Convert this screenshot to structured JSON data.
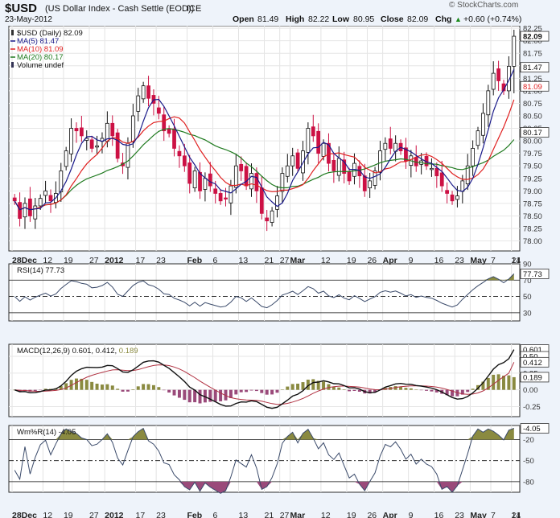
{
  "header": {
    "symbol": "$USD",
    "description": "(US Dollar Index - Cash Settle (EOD))",
    "exchange": "ICE",
    "date": "23-May-2012",
    "brand": "© StockCharts.com",
    "open_label": "Open",
    "open": "81.49",
    "high_label": "High",
    "high": "82.22",
    "low_label": "Low",
    "low": "80.95",
    "close_label": "Close",
    "close": "82.09",
    "chg_label": "Chg",
    "chg": "+0.60 (+0.74%)",
    "chg_arrow": "▲"
  },
  "colors": {
    "up": "#ffffff",
    "down": "#cc1144",
    "ma5": "#1a1a8a",
    "ma10": "#e02020",
    "ma20": "#1f7a1f",
    "osc_fill": "#8a8a40",
    "neg_fill": "#9a4a7a",
    "panel_bg": "#ffffff",
    "frame": "#2b2b2b"
  },
  "chart_data": [
    {
      "type": "candlestick",
      "title": "$USD (Daily) 82.09",
      "legend": [
        {
          "name": "$USD (Daily)",
          "value": "82.09",
          "icon": "candle-icon"
        },
        {
          "name": "MA(5)",
          "value": "81.47",
          "color": "#1a1a8a"
        },
        {
          "name": "MA(10)",
          "value": "81.09",
          "color": "#e02020"
        },
        {
          "name": "MA(20)",
          "value": "80.17",
          "color": "#1f7a1f"
        },
        {
          "name": "Volume",
          "value": "undef",
          "icon": "volume-icon"
        }
      ],
      "ylim": [
        77.8,
        82.3
      ],
      "yticks": [
        "82.25",
        "82.00",
        "81.75",
        "81.50",
        "81.25",
        "81.00",
        "80.75",
        "80.50",
        "80.25",
        "80.00",
        "79.75",
        "79.50",
        "79.25",
        "79.00",
        "78.75",
        "78.50",
        "78.25",
        "78.00"
      ],
      "value_tags": [
        {
          "value": 82.09,
          "label": "82.09",
          "bold": true
        },
        {
          "value": 81.47,
          "label": "81.47"
        },
        {
          "value": 81.09,
          "label": "81.09",
          "color": "#e02020"
        },
        {
          "value": 80.17,
          "label": "80.17"
        }
      ],
      "x_labels": [
        "28Dec",
        "12",
        "19",
        "27",
        "2012",
        "17",
        "23",
        "Feb",
        "6",
        "13",
        "21",
        "27",
        "Mar",
        "12",
        "19",
        "26",
        "Apr",
        "9",
        "16",
        "23",
        "May",
        "7",
        "14",
        "21"
      ],
      "closes": [
        78.8,
        78.45,
        78.75,
        78.5,
        78.7,
        78.85,
        79.0,
        78.8,
        78.95,
        79.4,
        79.8,
        80.25,
        80.2,
        80.1,
        80.05,
        79.85,
        79.9,
        80.05,
        80.35,
        80.1,
        79.65,
        79.5,
        79.95,
        80.5,
        80.9,
        81.1,
        80.85,
        80.75,
        80.55,
        80.2,
        80.15,
        79.85,
        79.7,
        79.5,
        79.15,
        79.4,
        79.0,
        79.25,
        79.1,
        78.95,
        78.8,
        78.85,
        79.1,
        79.5,
        79.4,
        79.1,
        79.35,
        79.0,
        78.55,
        78.4,
        78.6,
        78.9,
        79.35,
        79.5,
        79.7,
        79.45,
        79.8,
        80.25,
        80.1,
        79.75,
        79.95,
        79.55,
        79.4,
        79.65,
        79.35,
        79.2,
        79.55,
        79.3,
        79.0,
        79.2,
        79.4,
        79.8,
        79.95,
        79.85,
        79.95,
        79.8,
        79.6,
        79.7,
        79.5,
        79.6,
        79.5,
        79.45,
        79.3,
        79.1,
        78.95,
        78.8,
        78.9,
        79.2,
        79.5,
        79.85,
        80.2,
        80.55,
        81.0,
        81.35,
        81.2,
        81.0,
        81.49,
        82.09
      ],
      "bars": [],
      "ma5": [],
      "ma10": [],
      "ma20": []
    },
    {
      "type": "line",
      "title": "RSI(14)",
      "value_label": "77.73",
      "ylim": [
        20,
        90
      ],
      "yticks": [
        "90",
        "70",
        "50",
        "30"
      ],
      "levels": [
        70,
        50,
        30
      ],
      "tag": "77.73",
      "values": []
    },
    {
      "type": "line",
      "title": "MACD(12,26,9)",
      "values_label": [
        "0.601",
        "0.412",
        "0.189"
      ],
      "ylim": [
        -0.4,
        0.68
      ],
      "yticks": [
        "0.50",
        "0.25",
        "0.00",
        "-0.25"
      ],
      "tags": [
        "0.601",
        "0.50",
        "0.412",
        "0.189"
      ],
      "macd": [],
      "signal": [],
      "hist": []
    },
    {
      "type": "line",
      "title": "Wm%R(14)",
      "value_label": "-4.05",
      "ylim": [
        -95,
        0
      ],
      "yticks": [
        "-20",
        "-50",
        "-80"
      ],
      "levels": [
        -20,
        -50,
        -80
      ],
      "tag": "-4.05",
      "values": []
    }
  ]
}
